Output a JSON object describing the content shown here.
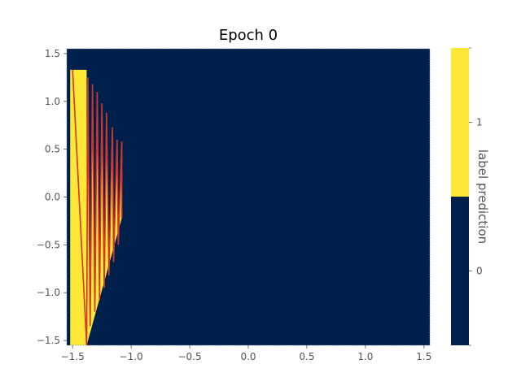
{
  "chart_data": {
    "type": "heatmap",
    "title": "Epoch 0",
    "xlabel": "",
    "ylabel": "",
    "xlim": [
      -1.55,
      1.55
    ],
    "ylim": [
      -1.55,
      1.55
    ],
    "x_ticks": [
      -1.5,
      -1.0,
      -0.5,
      0.0,
      0.5,
      1.0,
      1.5
    ],
    "x_tick_labels": [
      "−1.5",
      "−1.0",
      "−0.5",
      "0.0",
      "0.5",
      "1.0",
      "1.5"
    ],
    "y_ticks": [
      -1.5,
      -1.0,
      -0.5,
      0.0,
      0.5,
      1.0,
      1.5
    ],
    "y_tick_labels": [
      "−1.5",
      "−1.0",
      "−0.5",
      "0.0",
      "0.5",
      "1.0",
      "1.5"
    ],
    "grid": false,
    "prediction_regions": [
      {
        "label": 1,
        "description_region": "left strip",
        "x_range": [
          -1.52,
          -1.35
        ],
        "color": "#fde737"
      },
      {
        "label": 0,
        "description_region": "remaining area",
        "x_range": [
          -1.35,
          1.52
        ],
        "color": "#00204c"
      }
    ],
    "decision_boundary_zigzag": {
      "color": "#d1382b",
      "points": [
        [
          -1.5,
          1.33
        ],
        [
          -1.38,
          -1.55
        ],
        [
          -1.37,
          1.25
        ],
        [
          -1.35,
          -1.35
        ],
        [
          -1.33,
          1.18
        ],
        [
          -1.31,
          -1.2
        ],
        [
          -1.29,
          1.1
        ],
        [
          -1.27,
          -1.08
        ],
        [
          -1.25,
          0.98
        ],
        [
          -1.23,
          -0.95
        ],
        [
          -1.21,
          0.88
        ],
        [
          -1.19,
          -0.82
        ],
        [
          -1.16,
          0.73
        ],
        [
          -1.15,
          -0.68
        ],
        [
          -1.12,
          0.6
        ],
        [
          -1.11,
          -0.5
        ],
        [
          -1.08,
          0.58
        ],
        [
          -1.08,
          -0.22
        ]
      ]
    },
    "colorbar": {
      "label": "label prediction",
      "ticks": [
        1,
        0
      ],
      "tick_labels": [
        "1",
        "0"
      ],
      "colors": {
        "1": "#fde737",
        "0": "#00204c"
      }
    }
  }
}
